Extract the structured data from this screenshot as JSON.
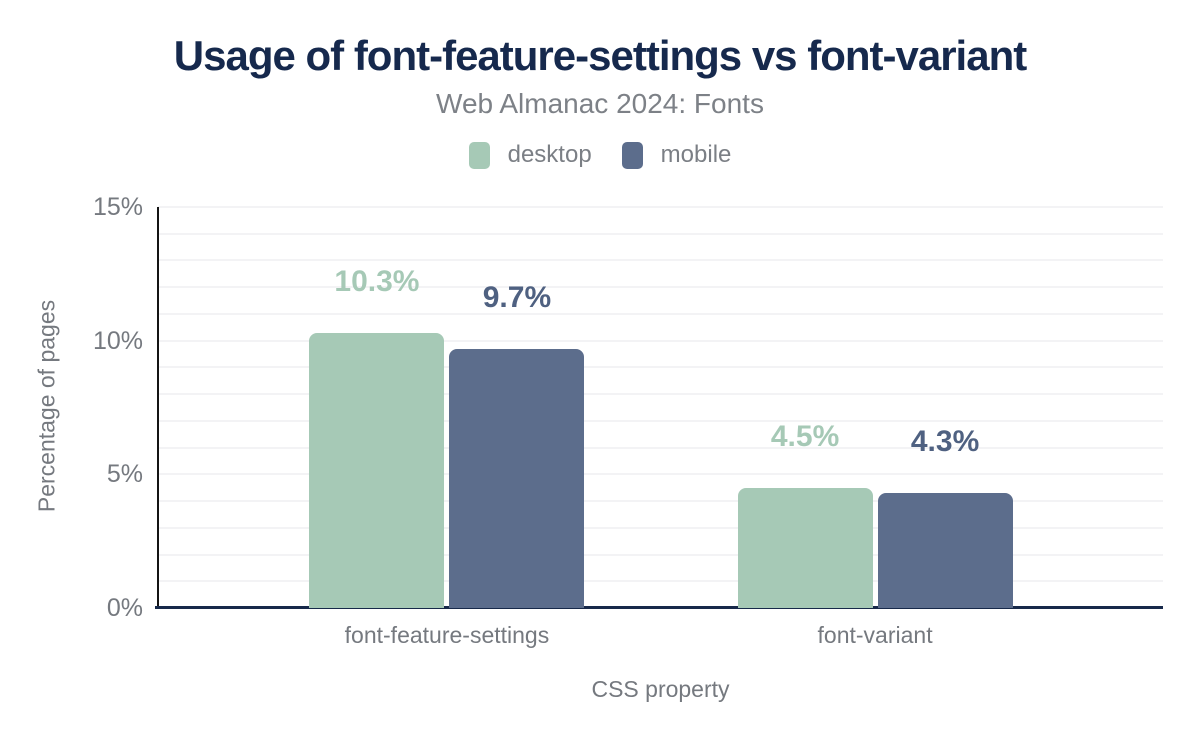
{
  "chart_data": {
    "type": "bar",
    "title": "Usage of font-feature-settings vs font-variant",
    "subtitle": "Web Almanac 2024: Fonts",
    "xlabel": "CSS property",
    "ylabel": "Percentage of pages",
    "categories": [
      "font-feature-settings",
      "font-variant"
    ],
    "series": [
      {
        "name": "desktop",
        "color": "#a6c9b6",
        "label_color": "#a6c9b6",
        "values": [
          10.3,
          4.5
        ],
        "value_labels": [
          "10.3%",
          "4.5%"
        ]
      },
      {
        "name": "mobile",
        "color": "#5c6d8c",
        "label_color": "#4f6181",
        "values": [
          9.7,
          4.3
        ],
        "value_labels": [
          "9.7%",
          "4.3%"
        ]
      }
    ],
    "ylim": [
      0,
      15
    ],
    "yticks": [
      0,
      5,
      10,
      15
    ],
    "ytick_labels": [
      "0%",
      "5%",
      "10%",
      "15%"
    ],
    "grid": {
      "show": true,
      "step_percent": 1,
      "color": "#f3f3f5"
    },
    "legend_position": "top",
    "colors": {
      "title": "#16294d",
      "subtitle": "#7d8187",
      "axis_text": "#75797f",
      "x_axis_line": "#17294a",
      "y_axis_line": "#141414",
      "background": "#ffffff"
    }
  }
}
